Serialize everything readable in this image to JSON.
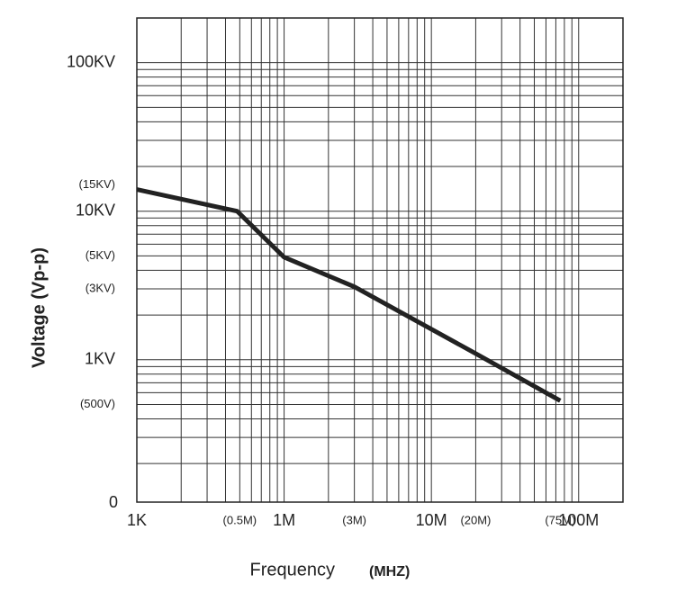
{
  "chart_data": {
    "type": "line",
    "x_label": "Frequency",
    "x_label_unit": "(MHZ)",
    "y_label": "Voltage (Vp-p)",
    "x_origin_label": "1K",
    "y_origin_label": "0",
    "x_log": true,
    "y_log": true,
    "grid": true,
    "xlim": [
      100000,
      200000000
    ],
    "ylim": [
      110,
      200000
    ],
    "xticks": [
      {
        "value": 500000,
        "label": "(0.5M)"
      },
      {
        "value": 1000000,
        "label": "1M"
      },
      {
        "value": 3000000,
        "label": "(3M)"
      },
      {
        "value": 10000000,
        "label": "10M"
      },
      {
        "value": 20000000,
        "label": "(20M)"
      },
      {
        "value": 75000000,
        "label": "(75M)"
      },
      {
        "value": 100000000,
        "label": "100M"
      }
    ],
    "yticks": [
      {
        "value": 100000,
        "label": "100KV"
      },
      {
        "value": 15000,
        "label": "(15KV)"
      },
      {
        "value": 10000,
        "label": "10KV"
      },
      {
        "value": 5000,
        "label": "(5KV)"
      },
      {
        "value": 3000,
        "label": "(3KV)"
      },
      {
        "value": 1000,
        "label": "1KV"
      },
      {
        "value": 500,
        "label": "(500V)"
      }
    ],
    "xgrid": [
      200000,
      300000,
      400000,
      500000,
      600000,
      700000,
      800000,
      900000,
      1000000,
      2000000,
      3000000,
      4000000,
      5000000,
      6000000,
      7000000,
      8000000,
      9000000,
      10000000,
      20000000,
      30000000,
      40000000,
      50000000,
      60000000,
      70000000,
      80000000,
      90000000,
      100000000
    ],
    "ygrid": [
      200,
      300,
      400,
      500,
      600,
      700,
      800,
      900,
      1000,
      2000,
      3000,
      4000,
      5000,
      6000,
      7000,
      8000,
      9000,
      10000,
      20000,
      30000,
      40000,
      50000,
      60000,
      70000,
      80000,
      90000,
      100000,
      200000
    ],
    "series": [
      {
        "color": "#222222",
        "x": [
          100000,
          480000,
          1000000,
          3000000,
          20000000,
          75000000
        ],
        "values": [
          14000,
          10000,
          4900,
          3100,
          1100,
          530
        ]
      }
    ]
  }
}
